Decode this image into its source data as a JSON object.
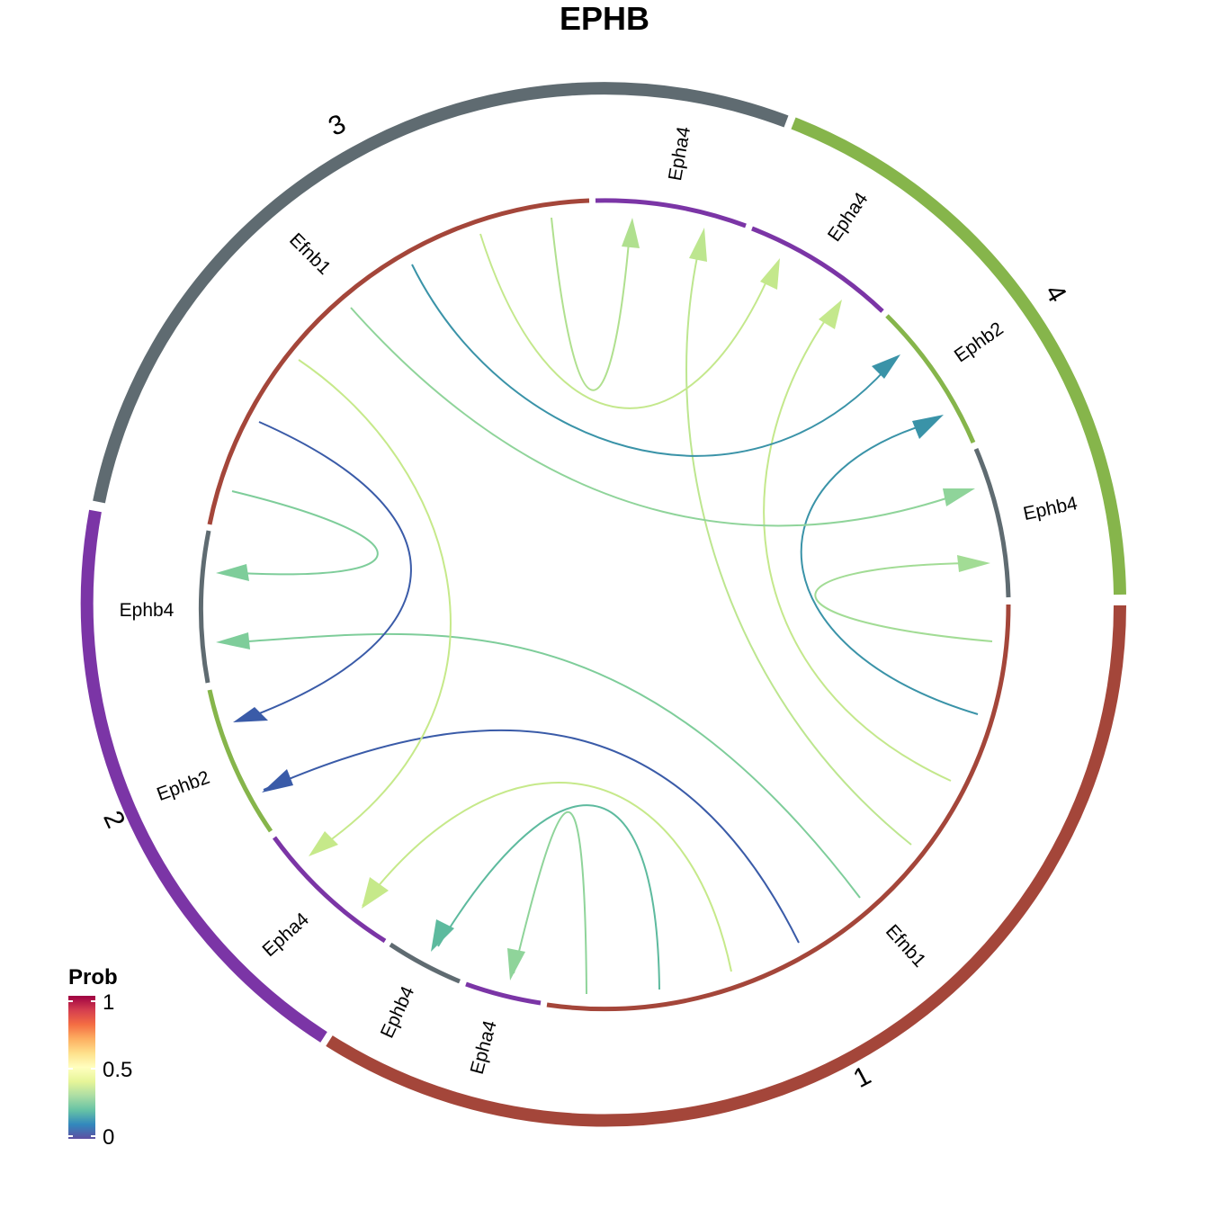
{
  "title": "EPHB",
  "colors": {
    "group_1": "#A4463A",
    "group_2": "#7B35A6",
    "group_3": "#5F6B71",
    "group_4": "#86B54B"
  },
  "groups": [
    {
      "id": "g1",
      "label": "1",
      "color": "#A4463A"
    },
    {
      "id": "g2",
      "label": "2",
      "color": "#7B35A6"
    },
    {
      "id": "g3",
      "label": "3",
      "color": "#5F6B71"
    },
    {
      "id": "g4",
      "label": "4",
      "color": "#86B54B"
    }
  ],
  "genes": [
    {
      "id": "g1-efnb1",
      "label": "Efnb1",
      "group": "1",
      "color": "#A4463A"
    },
    {
      "id": "g2-epha4a",
      "label": "Epha4",
      "group": "2",
      "color": "#7B35A6"
    },
    {
      "id": "g2-ephb4",
      "label": "Ephb4",
      "group": "2",
      "color": "#5F6B71"
    },
    {
      "id": "g2-epha4b",
      "label": "Epha4",
      "group": "2",
      "color": "#7B35A6"
    },
    {
      "id": "g2-ephb2",
      "label": "Ephb2",
      "group": "2",
      "color": "#86B54B"
    },
    {
      "id": "g3-ephb4",
      "label": "Ephb4",
      "group": "3",
      "color": "#5F6B71"
    },
    {
      "id": "g3-efnb1",
      "label": "Efnb1",
      "group": "3",
      "color": "#A4463A"
    },
    {
      "id": "g3-epha4",
      "label": "Epha4",
      "group": "3",
      "color": "#7B35A6"
    },
    {
      "id": "g4-epha4",
      "label": "Epha4",
      "group": "4",
      "color": "#7B35A6"
    },
    {
      "id": "g4-ephb2",
      "label": "Ephb2",
      "group": "4",
      "color": "#86B54B"
    },
    {
      "id": "g4-ephb4",
      "label": "Ephb4",
      "group": "4",
      "color": "#5F6B71"
    }
  ],
  "links": [
    {
      "source": "Efnb1 (1)",
      "target": "Ephb2 (2)",
      "color": "#3A5BA8"
    },
    {
      "source": "Efnb1 (1)",
      "target": "Ephb4 (2)",
      "color": "#7ECD9A"
    },
    {
      "source": "Efnb1 (1)",
      "target": "Epha4 (2)",
      "color": "#C6E98A"
    },
    {
      "source": "Efnb1 (1)",
      "target": "Ephb4 (2)",
      "color": "#5DBA9E"
    },
    {
      "source": "Efnb1 (1)",
      "target": "Epha4 (2)",
      "color": "#8FD49A"
    },
    {
      "source": "Efnb1 (1)",
      "target": "Ephb2 (4)",
      "color": "#3A93A8"
    },
    {
      "source": "Efnb1 (1)",
      "target": "Ephb4 (4)",
      "color": "#A2DC95"
    },
    {
      "source": "Efnb1 (1)",
      "target": "Epha4 (4)",
      "color": "#C4E88C"
    },
    {
      "source": "Efnb1 (1)",
      "target": "Epha4 (3)",
      "color": "#BDE68F"
    },
    {
      "source": "Efnb1 (3)",
      "target": "Ephb2 (2)",
      "color": "#3A5BA8"
    },
    {
      "source": "Efnb1 (3)",
      "target": "Ephb4 (2)",
      "color": "#7ECD9A"
    },
    {
      "source": "Efnb1 (3)",
      "target": "Epha4 (2)",
      "color": "#C6E98A"
    },
    {
      "source": "Efnb1 (3)",
      "target": "Ephb4 (4)",
      "color": "#8FD49A"
    },
    {
      "source": "Efnb1 (3)",
      "target": "Ephb2 (4)",
      "color": "#3A93A8"
    },
    {
      "source": "Efnb1 (3)",
      "target": "Epha4 (3)",
      "color": "#B0E08F"
    },
    {
      "source": "Efnb1 (3)",
      "target": "Epha4 (4)",
      "color": "#C4E88C"
    }
  ],
  "legend": {
    "title": "Prob",
    "ticks": [
      "1",
      "0.5",
      "0"
    ],
    "scale_min": 0,
    "scale_max": 1
  }
}
